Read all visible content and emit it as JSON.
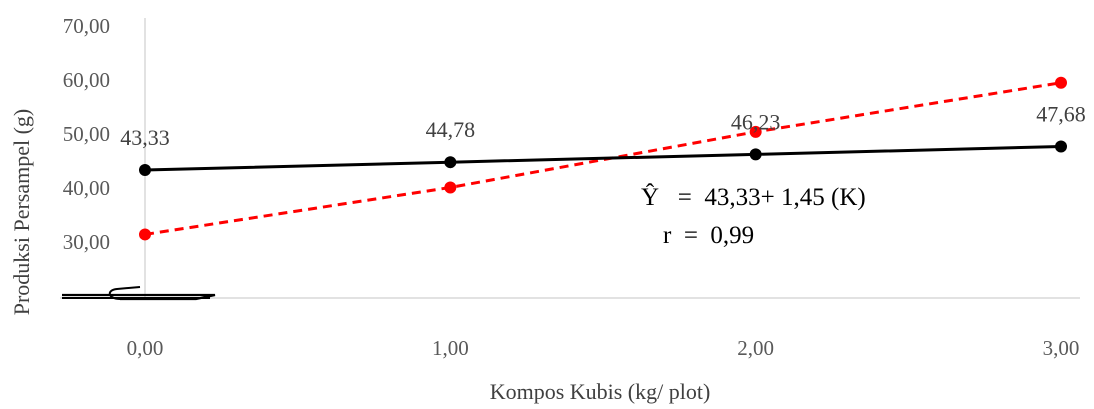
{
  "chart_data": {
    "type": "line",
    "x": [
      0,
      1,
      2,
      3
    ],
    "x_tick_labels": [
      "0,00",
      "1,00",
      "2,00",
      "3,00"
    ],
    "y_tick_labels": [
      "30,00",
      "40,00",
      "50,00",
      "60,00",
      "70,00"
    ],
    "ylim": [
      30,
      70
    ],
    "xlim": [
      0,
      3
    ],
    "xlabel": "Kompos Kubis (kg/ plot)",
    "ylabel": "Produksi Persampel (g)",
    "axis_break": true,
    "grid": false,
    "series": [
      {
        "color": "#000000",
        "style": "solid",
        "values": [
          43.33,
          44.78,
          46.23,
          47.68
        ],
        "data_labels": [
          "43,33",
          "44,78",
          "46,23",
          "47,68"
        ]
      },
      {
        "color": "#ff0000",
        "style": "dashed",
        "values": [
          31.4,
          40.1,
          50.4,
          59.5
        ]
      }
    ],
    "annotation": {
      "equation": "Ŷ   =  43,33+ 1,45 (K)",
      "r": "r  =  0,99"
    }
  }
}
